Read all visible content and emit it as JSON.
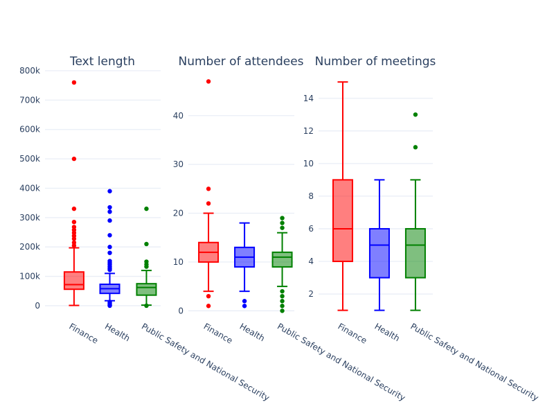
{
  "figure": {
    "background": "#ffffff",
    "text_color": "#2a3f5f",
    "grid_color": "#e9eef6",
    "categories": [
      "Finance",
      "Health",
      "Public Safety and National Security"
    ],
    "category_colors": [
      "#ff0000",
      "#0000ff",
      "#008000"
    ]
  },
  "chart_data": [
    {
      "type": "box",
      "title": "Text length",
      "xlabel": "",
      "ylabel": "",
      "grid": true,
      "legend": "none",
      "categories": [
        "Finance",
        "Health",
        "Public Safety and National Security"
      ],
      "ylim": [
        -19000,
        800000
      ],
      "yticks": {
        "values": [
          0,
          100000,
          200000,
          300000,
          400000,
          500000,
          600000,
          700000,
          800000
        ],
        "labels": [
          "0",
          "100k",
          "200k",
          "300k",
          "400k",
          "500k",
          "600k",
          "700k",
          "800k"
        ]
      },
      "series": [
        {
          "name": "Finance",
          "color": "#ff0000",
          "lowerfence": 1000,
          "q1": 56000,
          "median": 72000,
          "q3": 115000,
          "upperfence": 197000,
          "outliers": [
            205000,
            215000,
            228000,
            238000,
            248000,
            258000,
            268000,
            285000,
            330000,
            500000,
            760000
          ]
        },
        {
          "name": "Health",
          "color": "#0000ff",
          "lowerfence": 17000,
          "q1": 42000,
          "median": 58000,
          "q3": 73000,
          "upperfence": 110000,
          "outliers": [
            0,
            2000,
            5000,
            9000,
            13000,
            122000,
            127000,
            133000,
            140000,
            146000,
            152000,
            180000,
            200000,
            240000,
            290000,
            320000,
            335000,
            390000
          ]
        },
        {
          "name": "Public Safety and National Security",
          "color": "#008000",
          "lowerfence": 2000,
          "q1": 36000,
          "median": 62000,
          "q3": 75000,
          "upperfence": 120000,
          "outliers": [
            0,
            133000,
            141000,
            150000,
            210000,
            330000
          ]
        }
      ]
    },
    {
      "type": "box",
      "title": "Number of attendees",
      "xlabel": "",
      "ylabel": "",
      "grid": true,
      "legend": "none",
      "categories": [
        "Finance",
        "Health",
        "Public Safety and National Security"
      ],
      "ylim": [
        -0.1,
        49.2
      ],
      "yticks": {
        "values": [
          0,
          10,
          20,
          30,
          40
        ],
        "labels": [
          "0",
          "10",
          "20",
          "30",
          "40"
        ]
      },
      "series": [
        {
          "name": "Finance",
          "color": "#ff0000",
          "lowerfence": 4,
          "q1": 10,
          "median": 12,
          "q3": 14,
          "upperfence": 20,
          "outliers": [
            1,
            3,
            22,
            25,
            47
          ]
        },
        {
          "name": "Health",
          "color": "#0000ff",
          "lowerfence": 4,
          "q1": 9,
          "median": 11,
          "q3": 13,
          "upperfence": 18,
          "outliers": [
            1,
            2
          ]
        },
        {
          "name": "Public Safety and National Security",
          "color": "#008000",
          "lowerfence": 5,
          "q1": 9,
          "median": 11,
          "q3": 12,
          "upperfence": 16,
          "outliers": [
            0,
            1,
            2,
            3,
            4,
            17,
            18,
            19
          ]
        }
      ]
    },
    {
      "type": "box",
      "title": "Number of meetings",
      "xlabel": "",
      "ylabel": "",
      "grid": true,
      "legend": "none",
      "categories": [
        "Finance",
        "Health",
        "Public Safety and National Security"
      ],
      "ylim": [
        0.94,
        15.69
      ],
      "yticks": {
        "values": [
          2,
          4,
          6,
          8,
          10,
          12,
          14
        ],
        "labels": [
          "2",
          "4",
          "6",
          "8",
          "10",
          "12",
          "14"
        ]
      },
      "series": [
        {
          "name": "Finance",
          "color": "#ff0000",
          "lowerfence": 1,
          "q1": 4,
          "median": 6,
          "q3": 9,
          "upperfence": 15,
          "outliers": []
        },
        {
          "name": "Health",
          "color": "#0000ff",
          "lowerfence": 1,
          "q1": 3,
          "median": 5,
          "q3": 6,
          "upperfence": 9,
          "outliers": []
        },
        {
          "name": "Public Safety and National Security",
          "color": "#008000",
          "lowerfence": 1,
          "q1": 3,
          "median": 5,
          "q3": 6,
          "upperfence": 9,
          "outliers": [
            11,
            13
          ]
        }
      ]
    }
  ]
}
